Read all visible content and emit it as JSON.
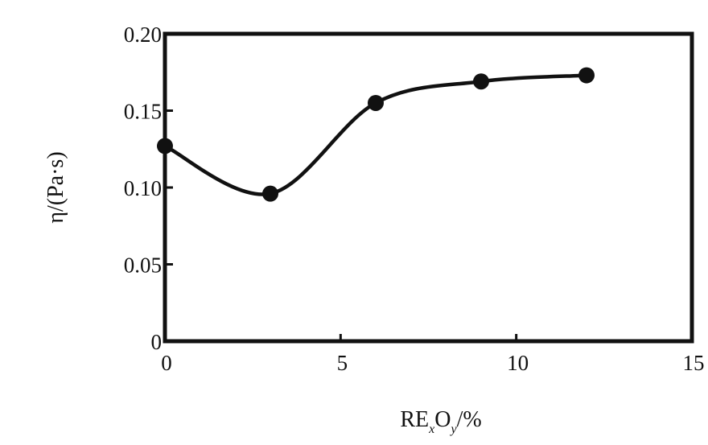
{
  "chart_data": {
    "type": "line",
    "title": "",
    "xlabel": {
      "base": "RE",
      "sub1": "x",
      "mid": "O",
      "sub2": "y",
      "suffix": "/%"
    },
    "ylabel": "η/(Pa·s)",
    "xlim": [
      0,
      15
    ],
    "ylim": [
      0,
      0.2
    ],
    "x_ticks": [
      "0",
      "5",
      "10",
      "15"
    ],
    "y_ticks": [
      "0",
      "0.05",
      "0.10",
      "0.15",
      "0.20"
    ],
    "series": [
      {
        "x": [
          0,
          3,
          6,
          9,
          12
        ],
        "y": [
          0.127,
          0.096,
          0.155,
          0.169,
          0.173
        ]
      }
    ],
    "grid": false,
    "line_color": "#111111",
    "marker": "filled-circle"
  }
}
